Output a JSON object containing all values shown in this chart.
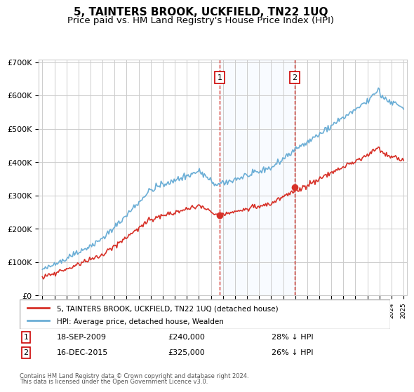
{
  "title": "5, TAINTERS BROOK, UCKFIELD, TN22 1UQ",
  "subtitle": "Price paid vs. HM Land Registry's House Price Index (HPI)",
  "x_start_year": 1995,
  "x_end_year": 2025,
  "y_min": 0,
  "y_max": 700000,
  "y_ticks": [
    0,
    100000,
    200000,
    300000,
    400000,
    500000,
    600000,
    700000
  ],
  "y_tick_labels": [
    "£0",
    "£100K",
    "£200K",
    "£300K",
    "£400K",
    "£500K",
    "£600K",
    "£700K"
  ],
  "hpi_color": "#6baed6",
  "price_color": "#d73027",
  "sale1_year": 2009.72,
  "sale1_price": 240000,
  "sale1_label": "1",
  "sale1_date": "18-SEP-2009",
  "sale1_pct": "28% ↓ HPI",
  "sale2_year": 2015.96,
  "sale2_price": 325000,
  "sale2_label": "2",
  "sale2_date": "16-DEC-2015",
  "sale2_pct": "26% ↓ HPI",
  "legend_entry1": "5, TAINTERS BROOK, UCKFIELD, TN22 1UQ (detached house)",
  "legend_entry2": "HPI: Average price, detached house, Wealden",
  "footer1": "Contains HM Land Registry data © Crown copyright and database right 2024.",
  "footer2": "This data is licensed under the Open Government Licence v3.0.",
  "bg_shade_color": "#ddeeff",
  "grid_color": "#cccccc",
  "title_fontsize": 11,
  "subtitle_fontsize": 9.5
}
